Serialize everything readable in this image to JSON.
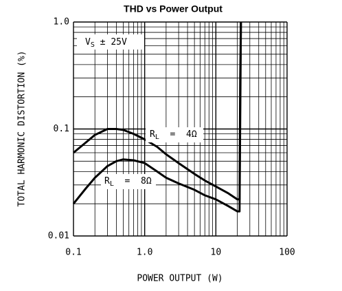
{
  "chart_data": {
    "type": "line",
    "title": "THD vs Power Output",
    "x_label": "POWER OUTPUT (W)",
    "y_label": "TOTAL HARMONIC DISTORTION (%)",
    "xscale": "log",
    "yscale": "log",
    "grid": true,
    "xlim": [
      0.1,
      100
    ],
    "xticks": [
      0.1,
      {
        "value": 1,
        "label": "1.0"
      },
      10,
      100
    ],
    "ylim": [
      0.01,
      1
    ],
    "yticks": [
      0.01,
      0.1,
      {
        "value": 1,
        "label": "1.0"
      }
    ],
    "series": [
      {
        "color": "#000000",
        "x": [
          0.1,
          0.15,
          0.2,
          0.3,
          0.4,
          0.5,
          0.7,
          1,
          1.5,
          2,
          3,
          5,
          7,
          10,
          15,
          20,
          21.5,
          22,
          22.5
        ],
        "values": [
          0.06,
          0.075,
          0.088,
          0.1,
          0.1,
          0.098,
          0.09,
          0.08,
          0.068,
          0.058,
          0.048,
          0.038,
          0.033,
          0.029,
          0.025,
          0.022,
          0.022,
          0.3,
          1.0
        ]
      },
      {
        "color": "#000000",
        "x": [
          0.1,
          0.15,
          0.2,
          0.3,
          0.4,
          0.5,
          0.7,
          1,
          1.5,
          2,
          3,
          5,
          7,
          10,
          15,
          20,
          21.5,
          22.5
        ],
        "values": [
          0.02,
          0.028,
          0.035,
          0.045,
          0.05,
          0.052,
          0.051,
          0.048,
          0.04,
          0.035,
          0.031,
          0.027,
          0.024,
          0.022,
          0.019,
          0.017,
          0.017,
          1.0
        ]
      }
    ],
    "annotations": [
      {
        "main": "V",
        "sub": "S",
        "tail": " ± 25V"
      },
      {
        "main": "R",
        "sub": "L",
        "tail": "  =  4Ω"
      },
      {
        "main": "R",
        "sub": "L",
        "tail": "  =  8Ω"
      }
    ]
  }
}
